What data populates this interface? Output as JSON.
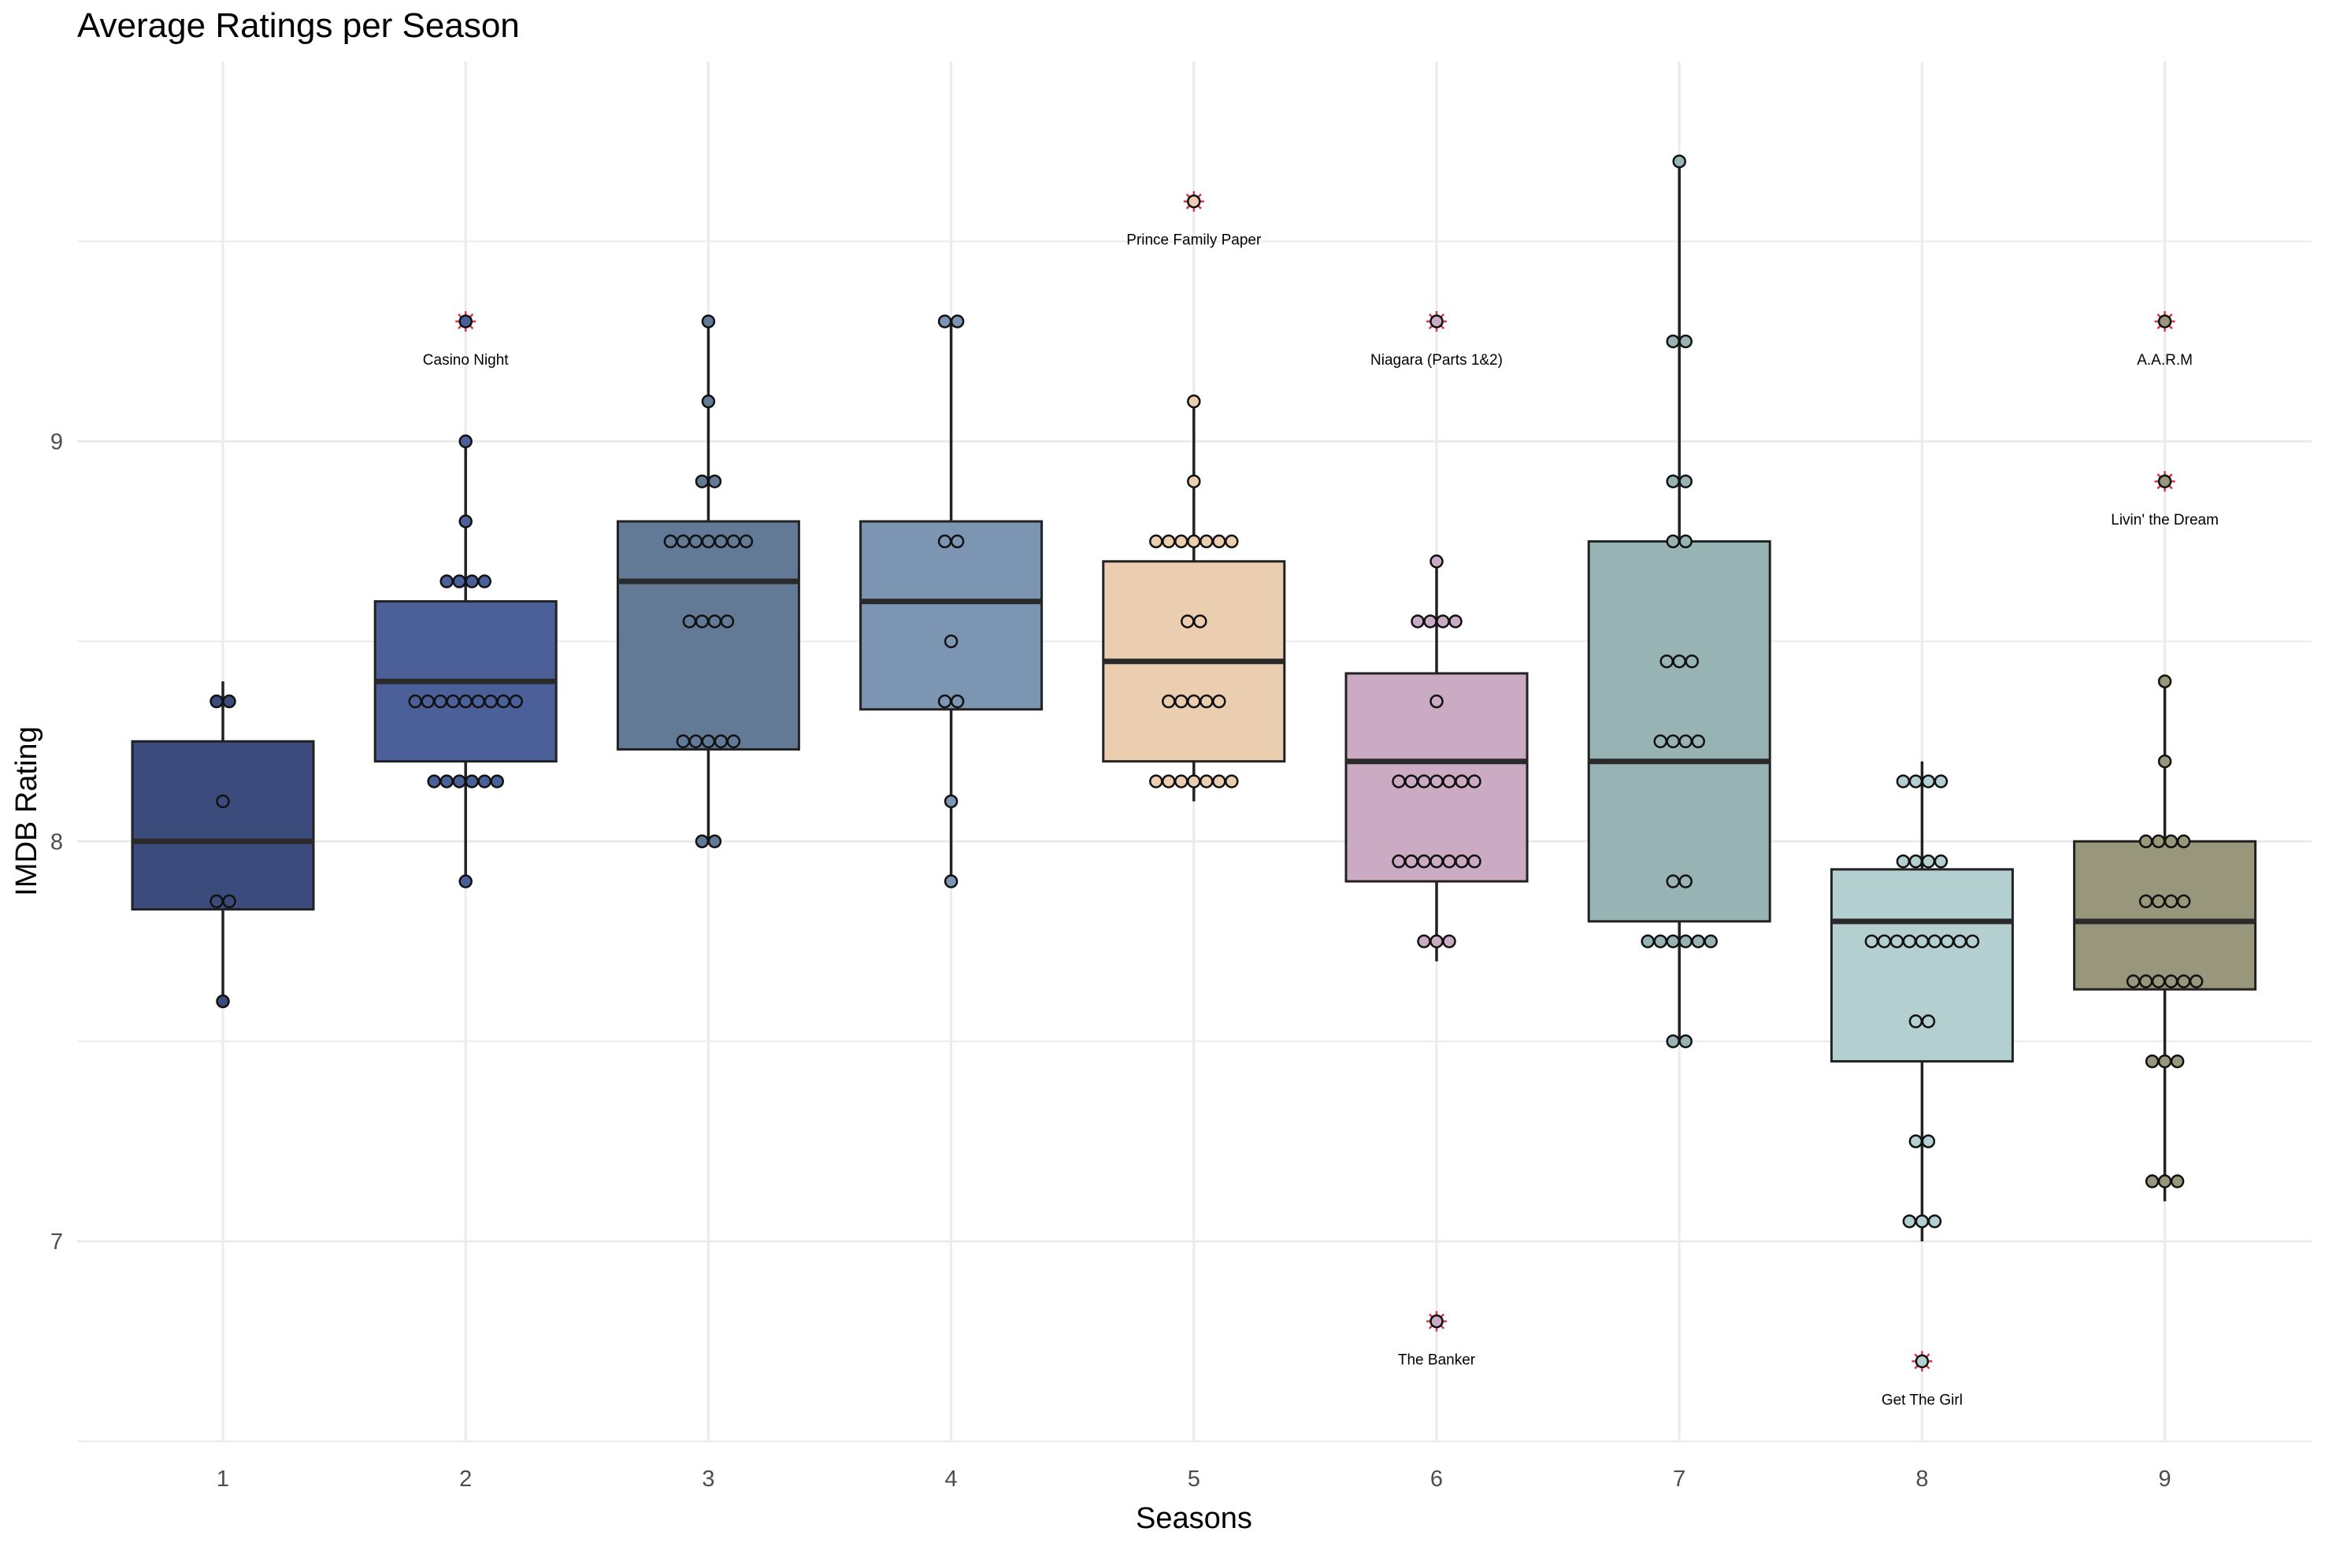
{
  "chart_data": {
    "type": "boxplot",
    "title": "Average Ratings per Season",
    "xlabel": "Seasons",
    "ylabel": "IMDB Rating",
    "categories": [
      "1",
      "2",
      "3",
      "4",
      "5",
      "6",
      "7",
      "8",
      "9"
    ],
    "ylim": [
      6.5,
      9.95
    ],
    "yticks": [
      7,
      8,
      9
    ],
    "grid": true,
    "legend": "none",
    "colors": [
      "#3a4b7c",
      "#4b5f99",
      "#627a96",
      "#7b95b2",
      "#ebcdb0",
      "#cbaac4",
      "#98b3b4",
      "#b3cfcf",
      "#98967b"
    ],
    "boxes": [
      {
        "season": "1",
        "lower_whisker": 7.6,
        "q1": 7.83,
        "median": 8.0,
        "q3": 8.25,
        "upper_whisker": 8.4,
        "points": [
          8.35,
          8.35,
          8.1,
          7.85,
          7.85,
          7.6
        ]
      },
      {
        "season": "2",
        "lower_whisker": 7.9,
        "q1": 8.2,
        "median": 8.4,
        "q3": 8.6,
        "upper_whisker": 9.0,
        "points": [
          9.0,
          8.8,
          8.65,
          8.65,
          8.65,
          8.65,
          8.35,
          8.35,
          8.35,
          8.35,
          8.35,
          8.35,
          8.35,
          8.35,
          8.35,
          8.15,
          8.15,
          8.15,
          8.15,
          8.15,
          8.15,
          7.9
        ]
      },
      {
        "season": "3",
        "lower_whisker": 8.0,
        "q1": 8.23,
        "median": 8.65,
        "q3": 8.8,
        "upper_whisker": 9.3,
        "points": [
          9.3,
          9.1,
          8.9,
          8.9,
          8.75,
          8.75,
          8.75,
          8.75,
          8.75,
          8.75,
          8.75,
          8.55,
          8.55,
          8.55,
          8.55,
          8.25,
          8.25,
          8.25,
          8.25,
          8.25,
          8.0,
          8.0
        ]
      },
      {
        "season": "4",
        "lower_whisker": 7.9,
        "q1": 8.33,
        "median": 8.6,
        "q3": 8.8,
        "upper_whisker": 9.3,
        "points": [
          9.3,
          9.3,
          8.75,
          8.75,
          8.5,
          8.35,
          8.35,
          8.1,
          7.9
        ]
      },
      {
        "season": "5",
        "lower_whisker": 8.1,
        "q1": 8.2,
        "median": 8.45,
        "q3": 8.7,
        "upper_whisker": 9.1,
        "points": [
          9.1,
          8.9,
          8.75,
          8.75,
          8.75,
          8.75,
          8.75,
          8.75,
          8.75,
          8.55,
          8.55,
          8.35,
          8.35,
          8.35,
          8.35,
          8.35,
          8.15,
          8.15,
          8.15,
          8.15,
          8.15,
          8.15,
          8.15
        ]
      },
      {
        "season": "6",
        "lower_whisker": 7.7,
        "q1": 7.9,
        "median": 8.2,
        "q3": 8.42,
        "upper_whisker": 8.7,
        "points": [
          8.7,
          8.55,
          8.55,
          8.55,
          8.55,
          8.35,
          8.15,
          8.15,
          8.15,
          8.15,
          8.15,
          8.15,
          8.15,
          7.95,
          7.95,
          7.95,
          7.95,
          7.95,
          7.95,
          7.95,
          7.75,
          7.75,
          7.75
        ]
      },
      {
        "season": "7",
        "lower_whisker": 7.5,
        "q1": 7.8,
        "median": 8.2,
        "q3": 8.75,
        "upper_whisker": 9.7,
        "points": [
          9.7,
          9.25,
          9.25,
          8.9,
          8.9,
          8.75,
          8.75,
          8.45,
          8.45,
          8.45,
          8.25,
          8.25,
          8.25,
          8.25,
          7.9,
          7.9,
          7.75,
          7.75,
          7.75,
          7.75,
          7.75,
          7.75,
          7.5,
          7.5
        ]
      },
      {
        "season": "8",
        "lower_whisker": 7.0,
        "q1": 7.45,
        "median": 7.8,
        "q3": 7.93,
        "upper_whisker": 8.2,
        "points": [
          8.15,
          8.15,
          8.15,
          8.15,
          7.95,
          7.95,
          7.95,
          7.95,
          7.75,
          7.75,
          7.75,
          7.75,
          7.75,
          7.75,
          7.75,
          7.75,
          7.75,
          7.55,
          7.55,
          7.25,
          7.25,
          7.05,
          7.05,
          7.05
        ]
      },
      {
        "season": "9",
        "lower_whisker": 7.1,
        "q1": 7.63,
        "median": 7.8,
        "q3": 8.0,
        "upper_whisker": 8.4,
        "points": [
          8.4,
          8.2,
          8.0,
          8.0,
          8.0,
          8.0,
          7.85,
          7.85,
          7.85,
          7.85,
          7.65,
          7.65,
          7.65,
          7.65,
          7.65,
          7.65,
          7.45,
          7.45,
          7.45,
          7.15,
          7.15,
          7.15
        ]
      }
    ],
    "outliers": [
      {
        "season": "2",
        "value": 9.3,
        "label": "Casino Night"
      },
      {
        "season": "5",
        "value": 9.6,
        "label": "Prince Family Paper"
      },
      {
        "season": "6",
        "value": 9.3,
        "label": "Niagara (Parts 1&2)"
      },
      {
        "season": "6",
        "value": 6.8,
        "label": "The Banker"
      },
      {
        "season": "8",
        "value": 6.7,
        "label": "Get The Girl"
      },
      {
        "season": "9",
        "value": 9.3,
        "label": "A.A.R.M"
      },
      {
        "season": "9",
        "value": 8.9,
        "label": "Livin' the Dream"
      }
    ]
  }
}
